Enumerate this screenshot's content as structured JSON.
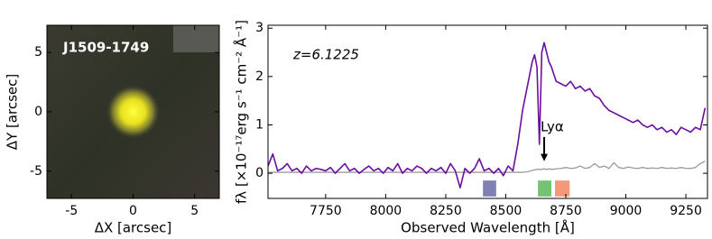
{
  "chart_data": [
    {
      "type": "image",
      "label": "J1509-1749",
      "xlabel": "ΔX [arcsec]",
      "ylabel": "ΔY [arcsec]",
      "xlim": [
        -7,
        7
      ],
      "ylim": [
        -7.3,
        7.3
      ],
      "xticks": [
        -5,
        0,
        5
      ],
      "yticks": [
        -5,
        0,
        5
      ]
    },
    {
      "type": "line",
      "xlabel": "Observed Wavelength [Å]",
      "ylabel": "fλ [×10⁻¹⁷erg s⁻¹ cm⁻² Å⁻¹]",
      "annotations": [
        "z=6.1225",
        "Lyα"
      ],
      "xlim": [
        7510,
        9340
      ],
      "ylim": [
        -0.52,
        3.06
      ],
      "xticks": [
        7750,
        8000,
        8250,
        8500,
        8750,
        9000,
        9250
      ],
      "yticks": [
        0,
        1,
        2,
        3
      ],
      "x": [
        7510,
        7530,
        7550,
        7570,
        7590,
        7610,
        7630,
        7650,
        7670,
        7690,
        7710,
        7730,
        7750,
        7770,
        7790,
        7810,
        7830,
        7850,
        7870,
        7890,
        7910,
        7930,
        7950,
        7970,
        7990,
        8010,
        8030,
        8050,
        8070,
        8090,
        8110,
        8130,
        8150,
        8170,
        8190,
        8210,
        8230,
        8250,
        8270,
        8290,
        8310,
        8330,
        8350,
        8370,
        8390,
        8410,
        8430,
        8450,
        8470,
        8490,
        8510,
        8530,
        8550,
        8570,
        8590,
        8610,
        8620,
        8630,
        8640,
        8650,
        8660,
        8670,
        8680,
        8690,
        8710,
        8730,
        8750,
        8770,
        8790,
        8810,
        8830,
        8850,
        8870,
        8890,
        8910,
        8930,
        8950,
        8970,
        8990,
        9010,
        9030,
        9050,
        9070,
        9090,
        9110,
        9130,
        9150,
        9170,
        9190,
        9210,
        9230,
        9250,
        9270,
        9290,
        9310,
        9330
      ],
      "series": [
        {
          "color": "#6a0f9e",
          "values": [
            0.15,
            0.4,
            0.05,
            0.1,
            0.2,
            0.05,
            0.1,
            0.0,
            0.15,
            0.05,
            0.1,
            0.08,
            0.05,
            0.12,
            0.0,
            0.1,
            0.2,
            0.05,
            0.1,
            0.0,
            0.08,
            0.15,
            0.05,
            0.1,
            0.0,
            0.12,
            0.05,
            0.2,
            0.0,
            0.1,
            0.05,
            0.15,
            0.1,
            0.0,
            0.1,
            0.05,
            0.12,
            0.0,
            0.2,
            0.05,
            -0.3,
            0.1,
            0.0,
            0.1,
            0.3,
            0.05,
            0.1,
            0.0,
            0.1,
            -0.05,
            0.15,
            0.05,
            0.6,
            1.3,
            1.8,
            2.3,
            2.45,
            2.2,
            0.6,
            2.5,
            2.7,
            2.5,
            2.3,
            2.2,
            1.9,
            1.85,
            1.8,
            1.9,
            1.75,
            1.8,
            1.7,
            1.75,
            1.6,
            1.55,
            1.4,
            1.3,
            1.25,
            1.2,
            1.15,
            1.1,
            1.05,
            1.1,
            1.0,
            0.95,
            1.0,
            0.9,
            0.95,
            0.85,
            0.9,
            0.8,
            0.95,
            0.9,
            0.85,
            0.95,
            0.9,
            1.35
          ]
        },
        {
          "color": "#9a9a9a",
          "values": [
            0.02,
            0.02,
            0.02,
            0.02,
            0.02,
            0.02,
            0.02,
            0.02,
            0.02,
            0.02,
            0.02,
            0.02,
            0.02,
            0.02,
            0.02,
            0.02,
            0.02,
            0.02,
            0.02,
            0.02,
            0.02,
            0.02,
            0.02,
            0.02,
            0.02,
            0.02,
            0.02,
            0.02,
            0.02,
            0.02,
            0.02,
            0.02,
            0.02,
            0.02,
            0.02,
            0.02,
            0.02,
            0.02,
            0.02,
            0.02,
            0.02,
            0.02,
            0.02,
            0.02,
            0.02,
            0.02,
            0.02,
            0.02,
            0.02,
            0.02,
            0.02,
            0.02,
            0.02,
            0.02,
            0.03,
            0.06,
            0.07,
            0.08,
            0.08,
            0.08,
            0.09,
            0.08,
            0.09,
            0.08,
            0.09,
            0.1,
            0.12,
            0.1,
            0.11,
            0.15,
            0.1,
            0.12,
            0.2,
            0.12,
            0.15,
            0.1,
            0.22,
            0.12,
            0.1,
            0.13,
            0.11,
            0.1,
            0.12,
            0.1,
            0.11,
            0.1,
            0.12,
            0.1,
            0.11,
            0.1,
            0.12,
            0.1,
            0.1,
            0.12,
            0.2,
            0.25
          ]
        }
      ],
      "bands": [
        {
          "xrange": [
            8405,
            8460
          ],
          "yrange": [
            -0.48,
            -0.15
          ],
          "color": "#8080b3"
        },
        {
          "xrange": [
            8634,
            8690
          ],
          "yrange": [
            -0.48,
            -0.15
          ],
          "color": "#74c274"
        },
        {
          "xrange": [
            8705,
            8766
          ],
          "yrange": [
            -0.48,
            -0.15
          ],
          "color": "#f5987a"
        }
      ]
    }
  ]
}
